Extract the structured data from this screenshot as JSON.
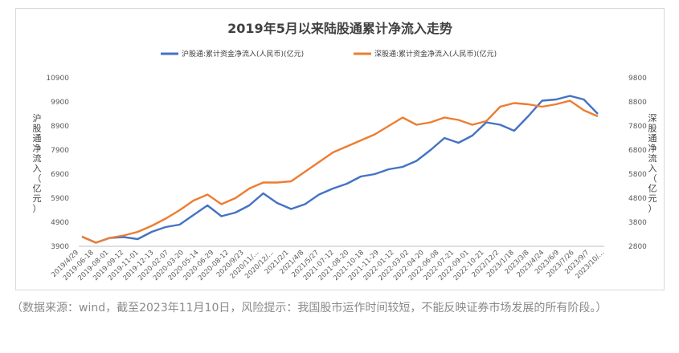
{
  "chart_data": {
    "type": "line",
    "title": "2019年5月以来陆股通累计净流入走势",
    "ylabel_left": "沪股通净流入（亿元）",
    "ylabel_right": "深股通净流入（亿元）",
    "y_left": {
      "lim": [
        3900,
        10900
      ],
      "ticks": [
        "3900",
        "4900",
        "5900",
        "6900",
        "7900",
        "8900",
        "9900",
        "10900"
      ]
    },
    "y_right": {
      "lim": [
        2800,
        9800
      ],
      "ticks": [
        "2800",
        "3800",
        "4800",
        "5800",
        "6800",
        "7800",
        "8800",
        "9800"
      ]
    },
    "x_ticks": [
      "2019/4/29",
      "2019-06-18",
      "2019-08-01",
      "2019-09-12",
      "2019-11-01",
      "2019-12-13",
      "2020-02-07",
      "2020-03-20",
      "2020-05-14",
      "2020-06-29",
      "2020-08-12",
      "2020/9/23",
      "2020/11/...",
      "2020/12/...",
      "2021/2/1",
      "2021/4/8",
      "2021/5/27",
      "2021-07-12",
      "2021-08-20",
      "2021-10-18",
      "2021-11-29",
      "2022-01-12",
      "2022-03-02",
      "2022-04-20",
      "2022-06-08",
      "2022-07-21",
      "2022-09-01",
      "2022-10-21",
      "2022/12/2",
      "2023/1/18",
      "2023/3/8",
      "2023/4/24",
      "2023/6/9",
      "2023/7/26",
      "2023/9/7",
      "2023/10/..."
    ],
    "legend_position": "top",
    "grid": false,
    "series": [
      {
        "name": "沪股通:累计资金净流入(人民币)(亿元)",
        "axis": "left",
        "color": "#4472c4",
        "values": [
          4300,
          4050,
          4250,
          4280,
          4200,
          4500,
          4700,
          4800,
          5200,
          5600,
          5150,
          5300,
          5600,
          6100,
          5700,
          5450,
          5650,
          6050,
          6300,
          6500,
          6800,
          6900,
          7100,
          7200,
          7450,
          7900,
          8400,
          8200,
          8500,
          9050,
          8950,
          8700,
          9300,
          9950,
          10000,
          10150,
          10000,
          9400
        ]
      },
      {
        "name": "深股通:累计资金净流入(人民币)(亿元)",
        "axis": "right",
        "color": "#ed7d31",
        "values": [
          3200,
          2950,
          3150,
          3250,
          3400,
          3650,
          3950,
          4300,
          4700,
          4950,
          4550,
          4800,
          5200,
          5450,
          5450,
          5500,
          5900,
          6300,
          6700,
          6950,
          7200,
          7450,
          7800,
          8150,
          7850,
          7950,
          8150,
          8050,
          7850,
          8000,
          8600,
          8750,
          8700,
          8600,
          8700,
          8850,
          8450,
          8200
        ]
      }
    ]
  },
  "caption": "（数据来源：wind，截至2023年11月10日，风险提示：我国股市运作时间较短，不能反映证券市场发展的所有阶段。）"
}
